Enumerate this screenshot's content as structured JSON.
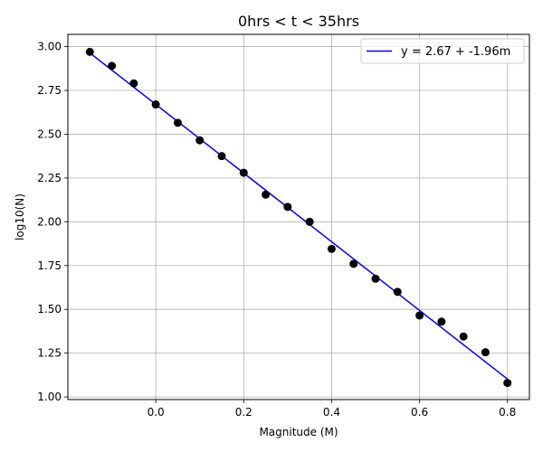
{
  "chart_data": {
    "type": "scatter",
    "title": "0hrs < t < 35hrs",
    "xlabel": "Magnitude (M)",
    "ylabel": "log10(N)",
    "xlim": [
      -0.2,
      0.85
    ],
    "ylim": [
      0.985,
      3.07
    ],
    "xticks": [
      0.0,
      0.2,
      0.4,
      0.6,
      0.8
    ],
    "xtick_labels": [
      "0.0",
      "0.2",
      "0.4",
      "0.6",
      "0.8"
    ],
    "yticks": [
      1.0,
      1.25,
      1.5,
      1.75,
      2.0,
      2.25,
      2.5,
      2.75,
      3.0
    ],
    "ytick_labels": [
      "1.00",
      "1.25",
      "1.50",
      "1.75",
      "2.00",
      "2.25",
      "2.50",
      "2.75",
      "3.00"
    ],
    "grid": true,
    "legend": "top-right",
    "colors": {
      "points": "#000000",
      "fit": "#0000ff",
      "grid": "#b0b0b0"
    },
    "series": [
      {
        "type": "scatter",
        "x": [
          -0.15,
          -0.1,
          -0.05,
          0.0,
          0.05,
          0.1,
          0.15,
          0.2,
          0.25,
          0.3,
          0.35,
          0.4,
          0.45,
          0.5,
          0.55,
          0.6,
          0.65,
          0.7,
          0.75,
          0.8
        ],
        "y": [
          2.97,
          2.89,
          2.79,
          2.67,
          2.565,
          2.465,
          2.375,
          2.28,
          2.155,
          2.085,
          2.0,
          1.845,
          1.76,
          1.675,
          1.6,
          1.465,
          1.43,
          1.345,
          1.255,
          1.08
        ]
      },
      {
        "type": "line",
        "name": "y = 2.67 + -1.96m",
        "intercept": 2.67,
        "slope": -1.96,
        "x": [
          -0.15,
          0.8
        ]
      }
    ]
  }
}
